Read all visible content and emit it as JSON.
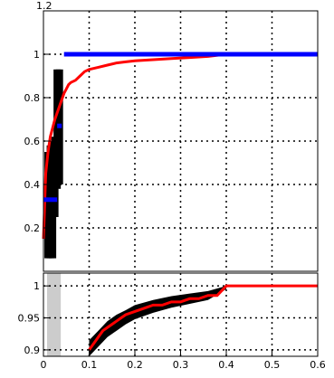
{
  "chart_data": [
    {
      "type": "line",
      "title": "",
      "xlabel": "",
      "ylabel": "",
      "xlim": [
        0,
        0.6
      ],
      "ylim": [
        0,
        1.2
      ],
      "grid": true,
      "x_ticks": [
        "0.1",
        "0.2",
        "0.3",
        "0.4",
        "0.5",
        "0.6"
      ],
      "y_ticks": [
        "0.2",
        "0.4",
        "0.6",
        "0.8",
        "1",
        "1.2"
      ],
      "series": [
        {
          "color": "#ff0000",
          "x": [
            0.0,
            0.005,
            0.01,
            0.015,
            0.02,
            0.025,
            0.03,
            0.035,
            0.04,
            0.045,
            0.05,
            0.055,
            0.06,
            0.07,
            0.08,
            0.09,
            0.1,
            0.12,
            0.14,
            0.16,
            0.18,
            0.2,
            0.24,
            0.28,
            0.32,
            0.36,
            0.4,
            0.45,
            0.5,
            0.55,
            0.6
          ],
          "y": [
            0.15,
            0.45,
            0.55,
            0.62,
            0.66,
            0.7,
            0.73,
            0.76,
            0.79,
            0.82,
            0.84,
            0.86,
            0.87,
            0.88,
            0.9,
            0.92,
            0.93,
            0.94,
            0.95,
            0.96,
            0.965,
            0.97,
            0.975,
            0.98,
            0.985,
            0.99,
            1.0,
            1.0,
            1.0,
            1.0,
            1.0
          ]
        },
        {
          "color": "#0000ff",
          "segments": [
            {
              "x": [
                0.045,
                0.6
              ],
              "y": [
                1.0,
                1.0
              ]
            },
            {
              "x": [
                0.0,
                0.03
              ],
              "y": [
                0.33,
                0.33
              ]
            },
            {
              "x": [
                0.03,
                0.04
              ],
              "y": [
                0.67,
                0.67
              ]
            }
          ]
        }
      ],
      "error_band": {
        "color": "#000000",
        "x": [
          0.01,
          0.015,
          0.02,
          0.025,
          0.03,
          0.035
        ],
        "low": [
          0.06,
          0.06,
          0.06,
          0.25,
          0.38,
          0.4
        ],
        "high": [
          0.55,
          0.58,
          0.6,
          0.62,
          0.93,
          0.93
        ]
      }
    },
    {
      "type": "line",
      "xlim": [
        0,
        0.6
      ],
      "ylim": [
        0.89,
        1.02
      ],
      "grid": true,
      "x_ticks": [
        "0",
        "0.1",
        "0.2",
        "0.3",
        "0.4",
        "0.5",
        "0.6"
      ],
      "y_ticks": [
        "0.9",
        "0.95",
        "1"
      ],
      "shaded_region": {
        "x": [
          0.0,
          0.03
        ],
        "color": "#cccccc"
      },
      "series": [
        {
          "color": "#ff0000",
          "x": [
            0.1,
            0.11,
            0.12,
            0.13,
            0.14,
            0.15,
            0.16,
            0.17,
            0.18,
            0.2,
            0.22,
            0.24,
            0.26,
            0.28,
            0.3,
            0.32,
            0.34,
            0.36,
            0.38,
            0.4,
            0.45,
            0.5,
            0.55,
            0.6
          ],
          "y": [
            0.9,
            0.91,
            0.92,
            0.93,
            0.935,
            0.94,
            0.945,
            0.95,
            0.955,
            0.96,
            0.965,
            0.97,
            0.97,
            0.975,
            0.975,
            0.98,
            0.98,
            0.985,
            0.985,
            1.0,
            1.0,
            1.0,
            1.0,
            1.0
          ]
        }
      ],
      "error_band": {
        "color": "#000000",
        "x": [
          0.1,
          0.12,
          0.14,
          0.16,
          0.18,
          0.2,
          0.24,
          0.28,
          0.32,
          0.36,
          0.4
        ],
        "low": [
          0.89,
          0.905,
          0.92,
          0.93,
          0.94,
          0.948,
          0.958,
          0.966,
          0.972,
          0.978,
          0.995
        ],
        "high": [
          0.915,
          0.93,
          0.945,
          0.955,
          0.962,
          0.97,
          0.978,
          0.984,
          0.988,
          0.992,
          1.0
        ]
      }
    }
  ]
}
